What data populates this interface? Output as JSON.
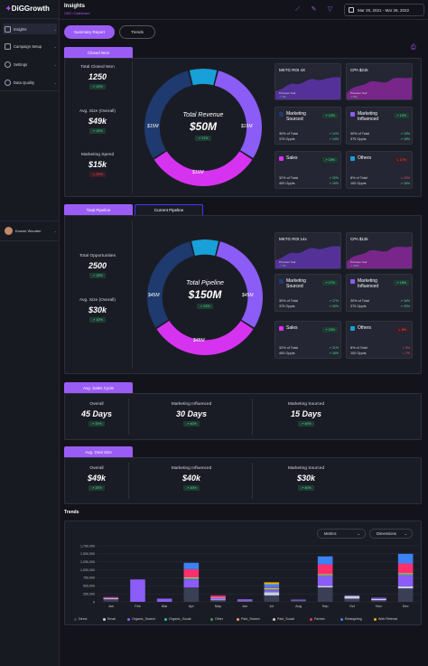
{
  "app": {
    "logo": "DiGGrowth"
  },
  "sidebar": {
    "items": [
      {
        "label": "Insights"
      },
      {
        "label": "Campaign Setup"
      },
      {
        "label": "Settings"
      },
      {
        "label": "Data Quality"
      }
    ],
    "user": "Konnie Wooden"
  },
  "header": {
    "title": "Insights",
    "breadcrumb": "CMO • Dashboard",
    "date_range": "Mar 29, 2021 - Mar 28, 2022"
  },
  "tabs": {
    "summary": "Summary Report",
    "trends": "Trends"
  },
  "closed_won": {
    "tag": "Closed Won",
    "metrics": [
      {
        "label": "Total Closed Won",
        "value": "1250",
        "badge": "10%",
        "neg": false
      },
      {
        "label": "Avg. Size (Overall)",
        "value": "$49k",
        "badge": "15%",
        "neg": false
      },
      {
        "label": "Marketing Spend",
        "value": "$15k",
        "badge": "12%",
        "neg": true
      }
    ],
    "donut": {
      "title": "Total Revenue",
      "value": "$50M",
      "badge": "21%",
      "segments": [
        {
          "label": "$15M",
          "value": 15,
          "color": "#8b5cf6"
        },
        {
          "label": "$16M",
          "value": 16,
          "color": "#d633f0"
        },
        {
          "label": "$15M",
          "value": 15,
          "color": "#1e3a6e"
        },
        {
          "label": "",
          "value": 4,
          "color": "#18a0d8"
        }
      ]
    },
    "cards": [
      {
        "title": "MKTG ROI 4X",
        "sub": "Previous Year",
        "badge": "1%"
      },
      {
        "title": "CPA $21k",
        "sub": "Previous Year",
        "badge": "8%"
      }
    ],
    "sources": [
      {
        "name": "Marketing Sourced",
        "color": "#1e3a6e",
        "badge": "10%",
        "neg": false,
        "r1": "30% of Total",
        "r1b": "12%",
        "r1n": false,
        "r2": "375 Oppts",
        "r2b": "14%",
        "r2n": false
      },
      {
        "name": "Marketing Influenced",
        "color": "#8b5cf6",
        "badge": "13%",
        "neg": false,
        "r1": "30% of Total",
        "r1b": "13%",
        "r1n": false,
        "r2": "375 Oppts",
        "r2b": "18%",
        "r2n": false
      },
      {
        "name": "Sales",
        "color": "#d633f0",
        "badge": "18%",
        "neg": false,
        "r1": "32% of Total",
        "r1b": "20%",
        "r1n": false,
        "r2": "400 Oppts",
        "r2b": "19%",
        "r2n": false
      },
      {
        "name": "Others",
        "color": "#18a0d8",
        "badge": "17%",
        "neg": true,
        "r1": "8% of Total",
        "r1b": "10%",
        "r1n": true,
        "r2": "100 Oppts",
        "r2b": "15%",
        "r2n": false
      }
    ]
  },
  "pipeline": {
    "tag": "Total Pipeline",
    "tag2": "Current Pipeline",
    "metrics": [
      {
        "label": "Total Opportunities",
        "value": "2500",
        "badge": "15%",
        "neg": false
      },
      {
        "label": "Avg. Size (Overall)",
        "value": "$30k",
        "badge": "10%",
        "neg": false
      }
    ],
    "donut": {
      "title": "Total Pipeline",
      "value": "$150M",
      "badge": "23%",
      "segments": [
        {
          "label": "$45M",
          "value": 45,
          "color": "#8b5cf6"
        },
        {
          "label": "$48M",
          "value": 48,
          "color": "#d633f0"
        },
        {
          "label": "$45M",
          "value": 45,
          "color": "#1e3a6e"
        },
        {
          "label": "",
          "value": 12,
          "color": "#18a0d8"
        }
      ]
    },
    "cards": [
      {
        "title": "MKTG ROI 14x",
        "sub": "Previous Year",
        "badge": "7%"
      },
      {
        "title": "CPA $12k",
        "sub": "Previous Year",
        "badge": "10%"
      }
    ],
    "sources": [
      {
        "name": "Marketing Sourced",
        "color": "#1e3a6e",
        "badge": "17%",
        "neg": false,
        "r1": "30% of Total",
        "r1b": "17%",
        "r1n": false,
        "r2": "375 Oppts",
        "r2b": "20%",
        "r2n": false
      },
      {
        "name": "Marketing Influenced",
        "color": "#8b5cf6",
        "badge": "18%",
        "neg": false,
        "r1": "30% of Total",
        "r1b": "16%",
        "r1n": false,
        "r2": "375 Oppts",
        "r2b": "20%",
        "r2n": false
      },
      {
        "name": "Sales",
        "color": "#d633f0",
        "badge": "23%",
        "neg": false,
        "r1": "32% of Total",
        "r1b": "21%",
        "r1n": false,
        "r2": "400 Oppts",
        "r2b": "18%",
        "r2n": false
      },
      {
        "name": "Others",
        "color": "#18a0d8",
        "badge": "8%",
        "neg": true,
        "r1": "8% of Total",
        "r1b": "9%",
        "r1n": true,
        "r2": "100 Oppts",
        "r2b": "7%",
        "r2n": true
      }
    ]
  },
  "sales_cycle": {
    "tag": "Avg. Sales Cycle",
    "cols": [
      {
        "label": "Overall",
        "value": "45 Days",
        "badge": "20%"
      },
      {
        "label": "Marketing Influenced",
        "value": "30 Days",
        "badge": "40%"
      },
      {
        "label": "Marketing Sourced",
        "value": "15 Days",
        "badge": "40%"
      }
    ]
  },
  "deal_size": {
    "tag": "Avg. Deal Size",
    "cols": [
      {
        "label": "Overall",
        "value": "$49k",
        "badge": "20%"
      },
      {
        "label": "Marketing Influenced",
        "value": "$40k",
        "badge": "40%"
      },
      {
        "label": "Marketing Sourced",
        "value": "$30k",
        "badge": "40%"
      }
    ]
  },
  "trends": {
    "title": "Trends",
    "metrics_dd": "Metrics",
    "dimensions_dd": "Dimensions"
  },
  "chart_data": {
    "type": "bar",
    "stacked": true,
    "categories": [
      "Jan",
      "Feb",
      "Mar",
      "Apr",
      "May",
      "Jun",
      "Jul",
      "Aug",
      "Sep",
      "Oct",
      "Nov",
      "Dec"
    ],
    "ylim": [
      0,
      1750000
    ],
    "yticks": [
      "1,750,000",
      "1,500,000",
      "1,250,000",
      "1,000,000",
      "750,000",
      "500,000",
      "250,000",
      "0"
    ],
    "series": [
      {
        "name": "Direct",
        "color": "#3a3f55",
        "values": [
          80000,
          0,
          0,
          450000,
          50000,
          20000,
          200000,
          40000,
          450000,
          100000,
          50000,
          420000
        ]
      },
      {
        "name": "Email",
        "color": "#c7d0e0",
        "values": [
          30000,
          0,
          0,
          0,
          20000,
          10000,
          100000,
          10000,
          50000,
          80000,
          40000,
          60000
        ]
      },
      {
        "name": "Organic_Search",
        "color": "#8b5cf6",
        "values": [
          20000,
          700000,
          100000,
          250000,
          50000,
          50000,
          60000,
          20000,
          300000,
          20000,
          40000,
          350000
        ]
      },
      {
        "name": "Organic_Social",
        "color": "#22c3a6",
        "values": [
          0,
          0,
          0,
          20000,
          0,
          0,
          20000,
          0,
          20000,
          0,
          0,
          20000
        ]
      },
      {
        "name": "Other",
        "color": "#2ea043",
        "values": [
          0,
          0,
          0,
          10000,
          0,
          0,
          10000,
          0,
          10000,
          0,
          0,
          10000
        ]
      },
      {
        "name": "Paid_Search",
        "color": "#f0a06a",
        "values": [
          0,
          0,
          0,
          20000,
          0,
          0,
          20000,
          0,
          20000,
          0,
          0,
          20000
        ]
      },
      {
        "name": "Paid_Social",
        "color": "#d6ccb6",
        "values": [
          0,
          0,
          0,
          20000,
          20000,
          0,
          20000,
          0,
          20000,
          0,
          0,
          20000
        ]
      },
      {
        "name": "Partner",
        "color": "#ff2f6d",
        "values": [
          20000,
          0,
          0,
          250000,
          60000,
          0,
          20000,
          0,
          300000,
          0,
          0,
          300000
        ]
      },
      {
        "name": "Retargeting",
        "color": "#3b82f6",
        "values": [
          0,
          0,
          0,
          200000,
          0,
          0,
          100000,
          0,
          250000,
          0,
          0,
          300000
        ]
      },
      {
        "name": "Web Referral",
        "color": "#eab308",
        "values": [
          0,
          0,
          0,
          0,
          0,
          0,
          60000,
          0,
          0,
          0,
          0,
          0
        ]
      }
    ]
  }
}
